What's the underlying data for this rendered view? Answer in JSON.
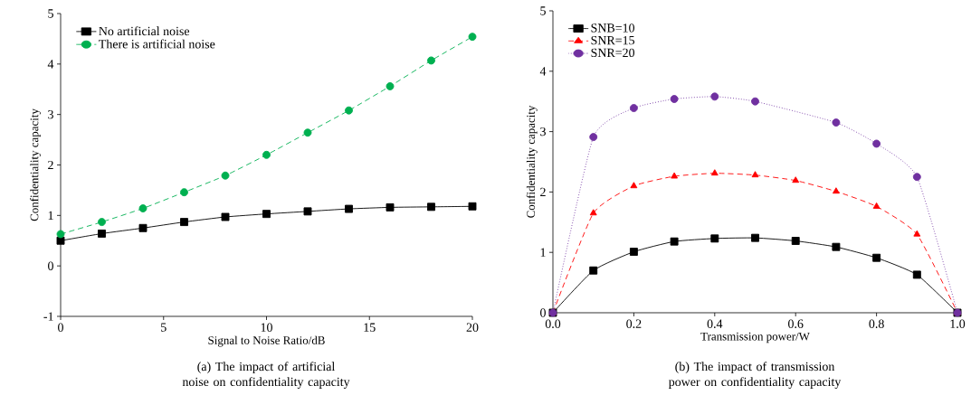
{
  "chart_data": [
    {
      "type": "line",
      "xlabel": "Signal to Noise Ratio/dB",
      "ylabel": "Confidentiality capacity",
      "annotations": [
        "(a) The impact of artificial noise on confidentiality capacity"
      ],
      "x": [
        0,
        2,
        4,
        6,
        8,
        10,
        12,
        14,
        16,
        18,
        20
      ],
      "xlim": [
        0,
        20
      ],
      "xticks": [
        0,
        5,
        10,
        15,
        20
      ],
      "ylim": [
        -1,
        5
      ],
      "yticks": [
        -1,
        0,
        1,
        2,
        3,
        4,
        5
      ],
      "legend": "top left",
      "grid": false,
      "series": [
        {
          "name": "No artificial noise",
          "color": "#000000",
          "marker": "square",
          "line_style": "solid",
          "values": [
            0.5,
            0.64,
            0.75,
            0.87,
            0.97,
            1.03,
            1.08,
            1.13,
            1.16,
            1.17,
            1.18
          ]
        },
        {
          "name": "There is artificial noise",
          "color": "#00b050",
          "marker": "circle",
          "line_style": "dashed",
          "values": [
            0.63,
            0.87,
            1.14,
            1.46,
            1.79,
            2.2,
            2.64,
            3.08,
            3.56,
            4.07,
            4.54
          ]
        }
      ]
    },
    {
      "type": "line",
      "xlabel": "Transmission power/W",
      "ylabel": "Confidentiality capacity",
      "annotations": [
        "(b) The impact of transmission power on confidentiality capacity"
      ],
      "x": [
        0,
        0.1,
        0.2,
        0.3,
        0.4,
        0.5,
        0.6,
        0.7,
        0.8,
        0.9,
        1.0
      ],
      "xlim": [
        0,
        1
      ],
      "xticks": [
        {
          "value": 0,
          "label": "0.0"
        },
        0.2,
        0.4,
        0.6,
        0.8,
        {
          "value": 1,
          "label": "1.0"
        }
      ],
      "ylim": [
        0,
        5
      ],
      "yticks": [
        0,
        1,
        2,
        3,
        4,
        5
      ],
      "legend": "top left",
      "grid": false,
      "series": [
        {
          "name": "SNB=10",
          "color": "#000000",
          "marker": "square",
          "line_style": "solid",
          "values": [
            0,
            0.7,
            1.01,
            1.18,
            1.23,
            1.24,
            1.19,
            1.09,
            0.91,
            0.63,
            0
          ]
        },
        {
          "name": "SNR=15",
          "color": "#ff0000",
          "marker": "triangle",
          "line_style": "dashed",
          "values": [
            0,
            1.65,
            2.1,
            2.26,
            2.31,
            2.28,
            2.19,
            2.01,
            1.76,
            1.3,
            0
          ]
        },
        {
          "name": "SNR=20",
          "color": "#7030a0",
          "marker": "circle",
          "line_style": "dotted",
          "x": [
            0,
            0.1,
            0.2,
            0.3,
            0.4,
            0.5,
            0.7,
            0.8,
            0.9,
            1.0
          ],
          "values": [
            0,
            2.91,
            3.39,
            3.54,
            3.58,
            3.5,
            3.15,
            2.8,
            2.25,
            0
          ]
        }
      ]
    }
  ]
}
